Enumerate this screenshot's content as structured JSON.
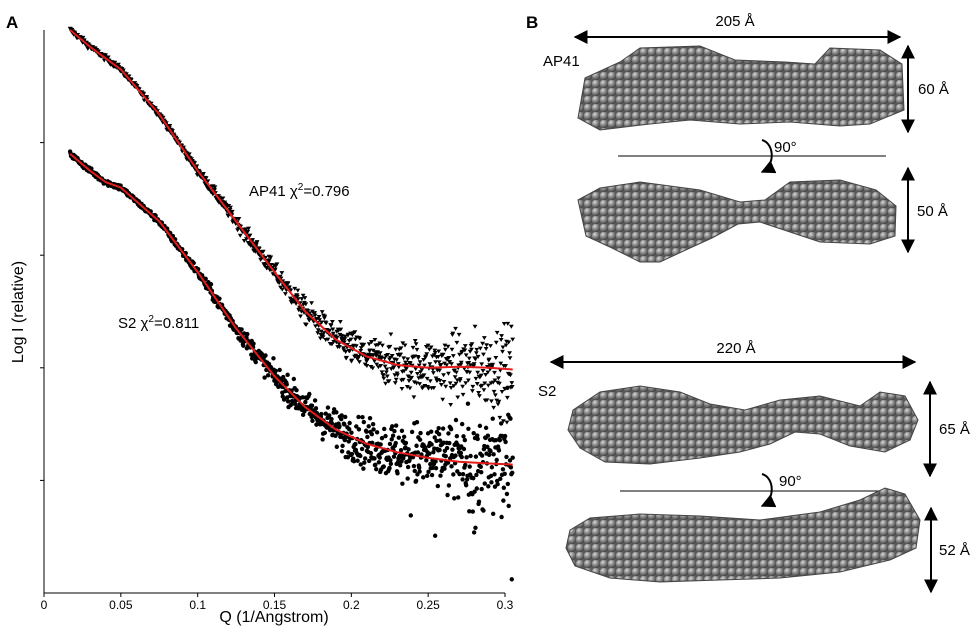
{
  "panel_a_label": "A",
  "panel_b_label": "B",
  "chart_data": {
    "type": "scatter",
    "title": "",
    "xlabel": "Q (1/Angstrom)",
    "ylabel": "Log I (relative)",
    "xlim": [
      0,
      0.3
    ],
    "x_ticks": [
      0,
      0.05,
      0.1,
      0.15,
      0.2,
      0.25,
      0.3
    ],
    "x_tick_labels": [
      "0",
      "0.05",
      "0.1",
      "0.15",
      "0.2",
      "0.25",
      "0.3"
    ],
    "y_ticks_shown": true,
    "y_tick_labels_shown": false,
    "legend": "none",
    "series": [
      {
        "name": "AP41",
        "annotation_name": "AP41",
        "annotation_chi": "0.796",
        "marker": "triangle-down",
        "marker_color": "#000000",
        "fit_color": "#e31b1b",
        "fit_curve": [
          [
            0.017,
            1.0
          ],
          [
            0.03,
            0.97
          ],
          [
            0.05,
            0.93
          ],
          [
            0.075,
            0.85
          ],
          [
            0.1,
            0.75
          ],
          [
            0.125,
            0.66
          ],
          [
            0.15,
            0.57
          ],
          [
            0.17,
            0.5
          ],
          [
            0.19,
            0.45
          ],
          [
            0.21,
            0.42
          ],
          [
            0.23,
            0.405
          ],
          [
            0.25,
            0.4
          ],
          [
            0.27,
            0.402
          ],
          [
            0.29,
            0.4
          ],
          [
            0.305,
            0.397
          ]
        ]
      },
      {
        "name": "S2",
        "annotation_name": "S2",
        "annotation_chi": "0.811",
        "marker": "circle",
        "marker_color": "#000000",
        "fit_color": "#e31b1b",
        "fit_curve": [
          [
            0.017,
            0.78
          ],
          [
            0.03,
            0.75
          ],
          [
            0.04,
            0.73
          ],
          [
            0.05,
            0.72
          ],
          [
            0.075,
            0.66
          ],
          [
            0.1,
            0.57
          ],
          [
            0.125,
            0.47
          ],
          [
            0.15,
            0.385
          ],
          [
            0.17,
            0.33
          ],
          [
            0.19,
            0.29
          ],
          [
            0.21,
            0.265
          ],
          [
            0.23,
            0.25
          ],
          [
            0.25,
            0.24
          ],
          [
            0.27,
            0.233
          ],
          [
            0.29,
            0.23
          ],
          [
            0.305,
            0.228
          ]
        ]
      }
    ]
  },
  "panel_b": {
    "models": [
      {
        "name": "AP41",
        "width_label": "205 Å",
        "height_label_top": "60 Å",
        "height_label_bottom": "50 Å",
        "rotation_label": "90°"
      },
      {
        "name": "S2",
        "width_label": "220 Å",
        "height_label_top": "65 Å",
        "height_label_bottom": "52 Å",
        "rotation_label": "90°"
      }
    ],
    "sphere_color": "#7a7a7a"
  }
}
